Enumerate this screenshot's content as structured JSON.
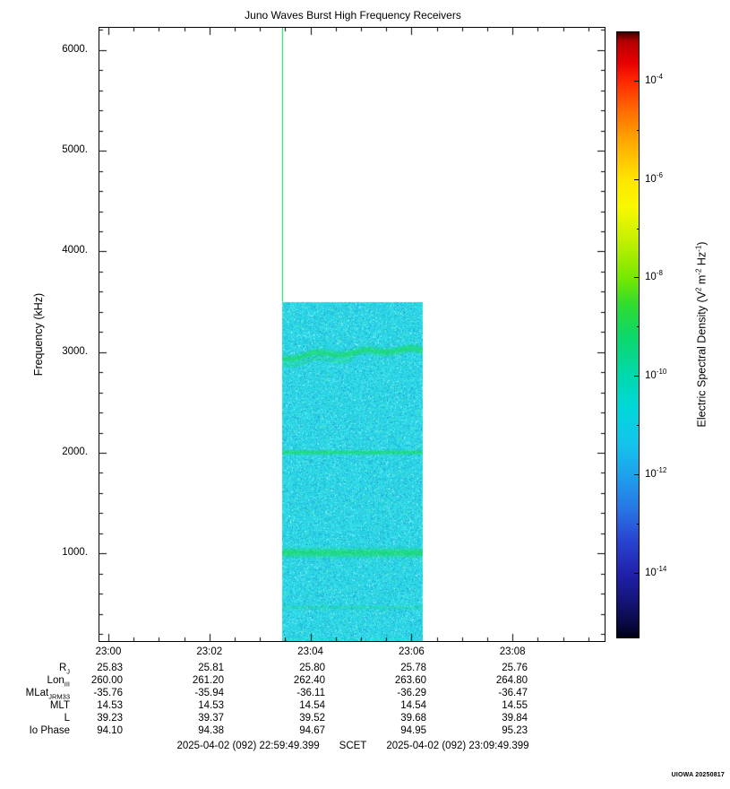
{
  "chart_data": {
    "type": "heatmap",
    "title": "Juno Waves Burst High Frequency Receivers",
    "ylabel": "Frequency (kHz)",
    "y_range_khz": [
      130,
      6222
    ],
    "duration_min": 10,
    "grid": false,
    "y_ticks": [
      {
        "label": "6000.",
        "value": 6000
      },
      {
        "label": "5000.",
        "value": 5000
      },
      {
        "label": "4000.",
        "value": 4000
      },
      {
        "label": "3000.",
        "value": 3000
      },
      {
        "label": "2000.",
        "value": 2000
      },
      {
        "label": "1000.",
        "value": 1000
      }
    ],
    "x_ticks": [
      {
        "label": "23:00",
        "t_min": 0.1767
      },
      {
        "label": "23:02",
        "t_min": 2.1767
      },
      {
        "label": "23:04",
        "t_min": 4.1767
      },
      {
        "label": "23:06",
        "t_min": 6.1767
      },
      {
        "label": "23:08",
        "t_min": 8.1767
      }
    ],
    "burst": {
      "description": "Burst-mode spectrogram segment: cyan background noise near 1e-12 with narrowband green emission lines",
      "t_start_min": 3.62,
      "t_end_min": 6.4,
      "approx_start_time": "23:03:26",
      "approx_end_time": "23:06:13",
      "freq_min_khz": 130,
      "freq_max_khz": 3500,
      "background_level_exp": -12,
      "background_color": "#30d8e6",
      "band_color": "#19dc50",
      "bands": [
        {
          "freq_khz": 3005,
          "width_khz": 60,
          "intensity": "strong",
          "level_exp": -10,
          "wavy": true,
          "extent": "full"
        },
        {
          "freq_khz": 2940,
          "width_khz": 25,
          "intensity": "medium",
          "level_exp": -11,
          "wavy": true,
          "extent": "left-half"
        },
        {
          "freq_khz": 2010,
          "width_khz": 35,
          "intensity": "strong",
          "level_exp": -10,
          "wavy": false,
          "extent": "full"
        },
        {
          "freq_khz": 1010,
          "width_khz": 70,
          "intensity": "strong",
          "level_exp": -10,
          "wavy": false,
          "extent": "full"
        },
        {
          "freq_khz": 470,
          "width_khz": 30,
          "intensity": "faint",
          "level_exp": -11,
          "wavy": false,
          "extent": "full"
        }
      ],
      "vertical_line": {
        "t_min": 3.62,
        "freq_top_khz": 6222,
        "freq_bottom_khz": 3500,
        "color": "#00dc50"
      }
    },
    "colorbar": {
      "label_parts": [
        "Electric Spectral Density (V",
        "2",
        " m",
        "-2",
        " Hz",
        "-1",
        ")"
      ],
      "tick_base": "10",
      "tick_exps": [
        "-4",
        "-6",
        "-8",
        "-10",
        "-12",
        "-14"
      ],
      "range_exp": [
        -3,
        -15.3
      ],
      "gradient_stops": [
        [
          0,
          "#3c0000"
        ],
        [
          1.5,
          "#b40000"
        ],
        [
          5,
          "#e80000"
        ],
        [
          8.15,
          "#ff2800"
        ],
        [
          13,
          "#ff6c00"
        ],
        [
          18,
          "#ffa800"
        ],
        [
          24.45,
          "#ffe600"
        ],
        [
          29,
          "#f8f800"
        ],
        [
          34,
          "#c8f000"
        ],
        [
          40.75,
          "#74e800"
        ],
        [
          45,
          "#30dc30"
        ],
        [
          50,
          "#0ed868"
        ],
        [
          57.05,
          "#00d8b0"
        ],
        [
          62,
          "#00d8d8"
        ],
        [
          68,
          "#14c4ec"
        ],
        [
          73.35,
          "#1ea0ec"
        ],
        [
          79,
          "#2874e4"
        ],
        [
          84,
          "#2844d0"
        ],
        [
          89.65,
          "#2020aa"
        ],
        [
          94,
          "#141478"
        ],
        [
          98,
          "#080840"
        ],
        [
          100,
          "#000014"
        ]
      ]
    }
  },
  "ephemeris": {
    "rows": [
      {
        "label_main": "R",
        "label_sub": "J",
        "values": [
          "25.83",
          "25.81",
          "25.80",
          "25.78",
          "25.76"
        ]
      },
      {
        "label_main": "Lon",
        "label_sub": "III",
        "values": [
          "260.00",
          "261.20",
          "262.40",
          "263.60",
          "264.80"
        ]
      },
      {
        "label_main": "MLat",
        "label_sub": "JRM33",
        "values": [
          "-35.76",
          "-35.94",
          "-36.11",
          "-36.29",
          "-36.47"
        ]
      },
      {
        "label_main": "MLT",
        "label_sub": "",
        "values": [
          "14.53",
          "14.53",
          "14.54",
          "14.54",
          "14.55"
        ]
      },
      {
        "label_main": "L",
        "label_sub": "",
        "values": [
          "39.23",
          "39.37",
          "39.52",
          "39.68",
          "39.84"
        ]
      },
      {
        "label_main": "Io Phase",
        "label_sub": "",
        "values": [
          "94.10",
          "94.38",
          "94.67",
          "94.95",
          "95.23"
        ]
      }
    ]
  },
  "footer": {
    "scet_start": "2025-04-02 (092) 22:59:49.399",
    "scet_label": "SCET",
    "scet_end": "2025-04-02 (092) 23:09:49.399"
  },
  "credit": "UIOWA 20250817"
}
